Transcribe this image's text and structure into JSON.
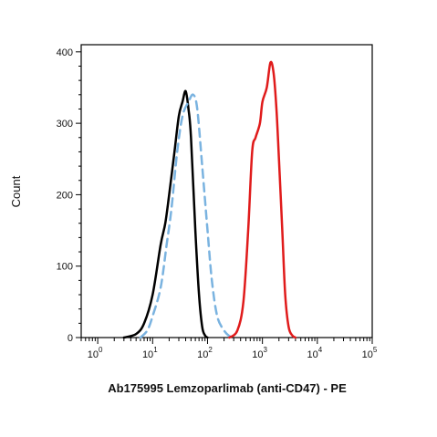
{
  "chart_data": {
    "type": "line",
    "title": "",
    "xlabel": "Ab175995 Lemzoparlimab (anti-CD47) - PE",
    "ylabel": "Count",
    "xscale": "log",
    "xlim": [
      0.5,
      100000
    ],
    "ylim": [
      0,
      410
    ],
    "x_tick_labels": [
      {
        "base": "10",
        "exp": "0",
        "value": 1
      },
      {
        "base": "10",
        "exp": "1",
        "value": 10
      },
      {
        "base": "10",
        "exp": "2",
        "value": 100
      },
      {
        "base": "10",
        "exp": "3",
        "value": 1000
      },
      {
        "base": "10",
        "exp": "4",
        "value": 10000
      },
      {
        "base": "10",
        "exp": "5",
        "value": 100000
      }
    ],
    "y_ticks": [
      0,
      100,
      200,
      300,
      400
    ],
    "grid": false,
    "legend": "none",
    "series": [
      {
        "color": "#000000",
        "dash": "solid",
        "points": [
          [
            3,
            0
          ],
          [
            5,
            5
          ],
          [
            7,
            20
          ],
          [
            10,
            60
          ],
          [
            14,
            130
          ],
          [
            17,
            160
          ],
          [
            20,
            200
          ],
          [
            25,
            260
          ],
          [
            30,
            310
          ],
          [
            35,
            330
          ],
          [
            40,
            345
          ],
          [
            45,
            320
          ],
          [
            50,
            280
          ],
          [
            60,
            150
          ],
          [
            70,
            60
          ],
          [
            80,
            15
          ],
          [
            90,
            3
          ],
          [
            100,
            0
          ]
        ]
      },
      {
        "color": "#7ab3e0",
        "dash": "dashed",
        "points": [
          [
            6,
            0
          ],
          [
            8,
            10
          ],
          [
            10,
            30
          ],
          [
            14,
            70
          ],
          [
            18,
            130
          ],
          [
            22,
            180
          ],
          [
            28,
            260
          ],
          [
            35,
            310
          ],
          [
            45,
            330
          ],
          [
            55,
            340
          ],
          [
            65,
            320
          ],
          [
            80,
            240
          ],
          [
            100,
            150
          ],
          [
            120,
            80
          ],
          [
            150,
            30
          ],
          [
            200,
            10
          ],
          [
            250,
            2
          ],
          [
            300,
            0
          ]
        ]
      },
      {
        "color": "#e01b1b",
        "dash": "solid",
        "points": [
          [
            250,
            0
          ],
          [
            350,
            10
          ],
          [
            450,
            50
          ],
          [
            550,
            150
          ],
          [
            650,
            260
          ],
          [
            750,
            280
          ],
          [
            900,
            300
          ],
          [
            1000,
            330
          ],
          [
            1200,
            350
          ],
          [
            1400,
            385
          ],
          [
            1600,
            370
          ],
          [
            1800,
            320
          ],
          [
            2000,
            250
          ],
          [
            2300,
            150
          ],
          [
            2600,
            60
          ],
          [
            3000,
            15
          ],
          [
            3500,
            3
          ],
          [
            4000,
            0
          ]
        ]
      }
    ]
  }
}
